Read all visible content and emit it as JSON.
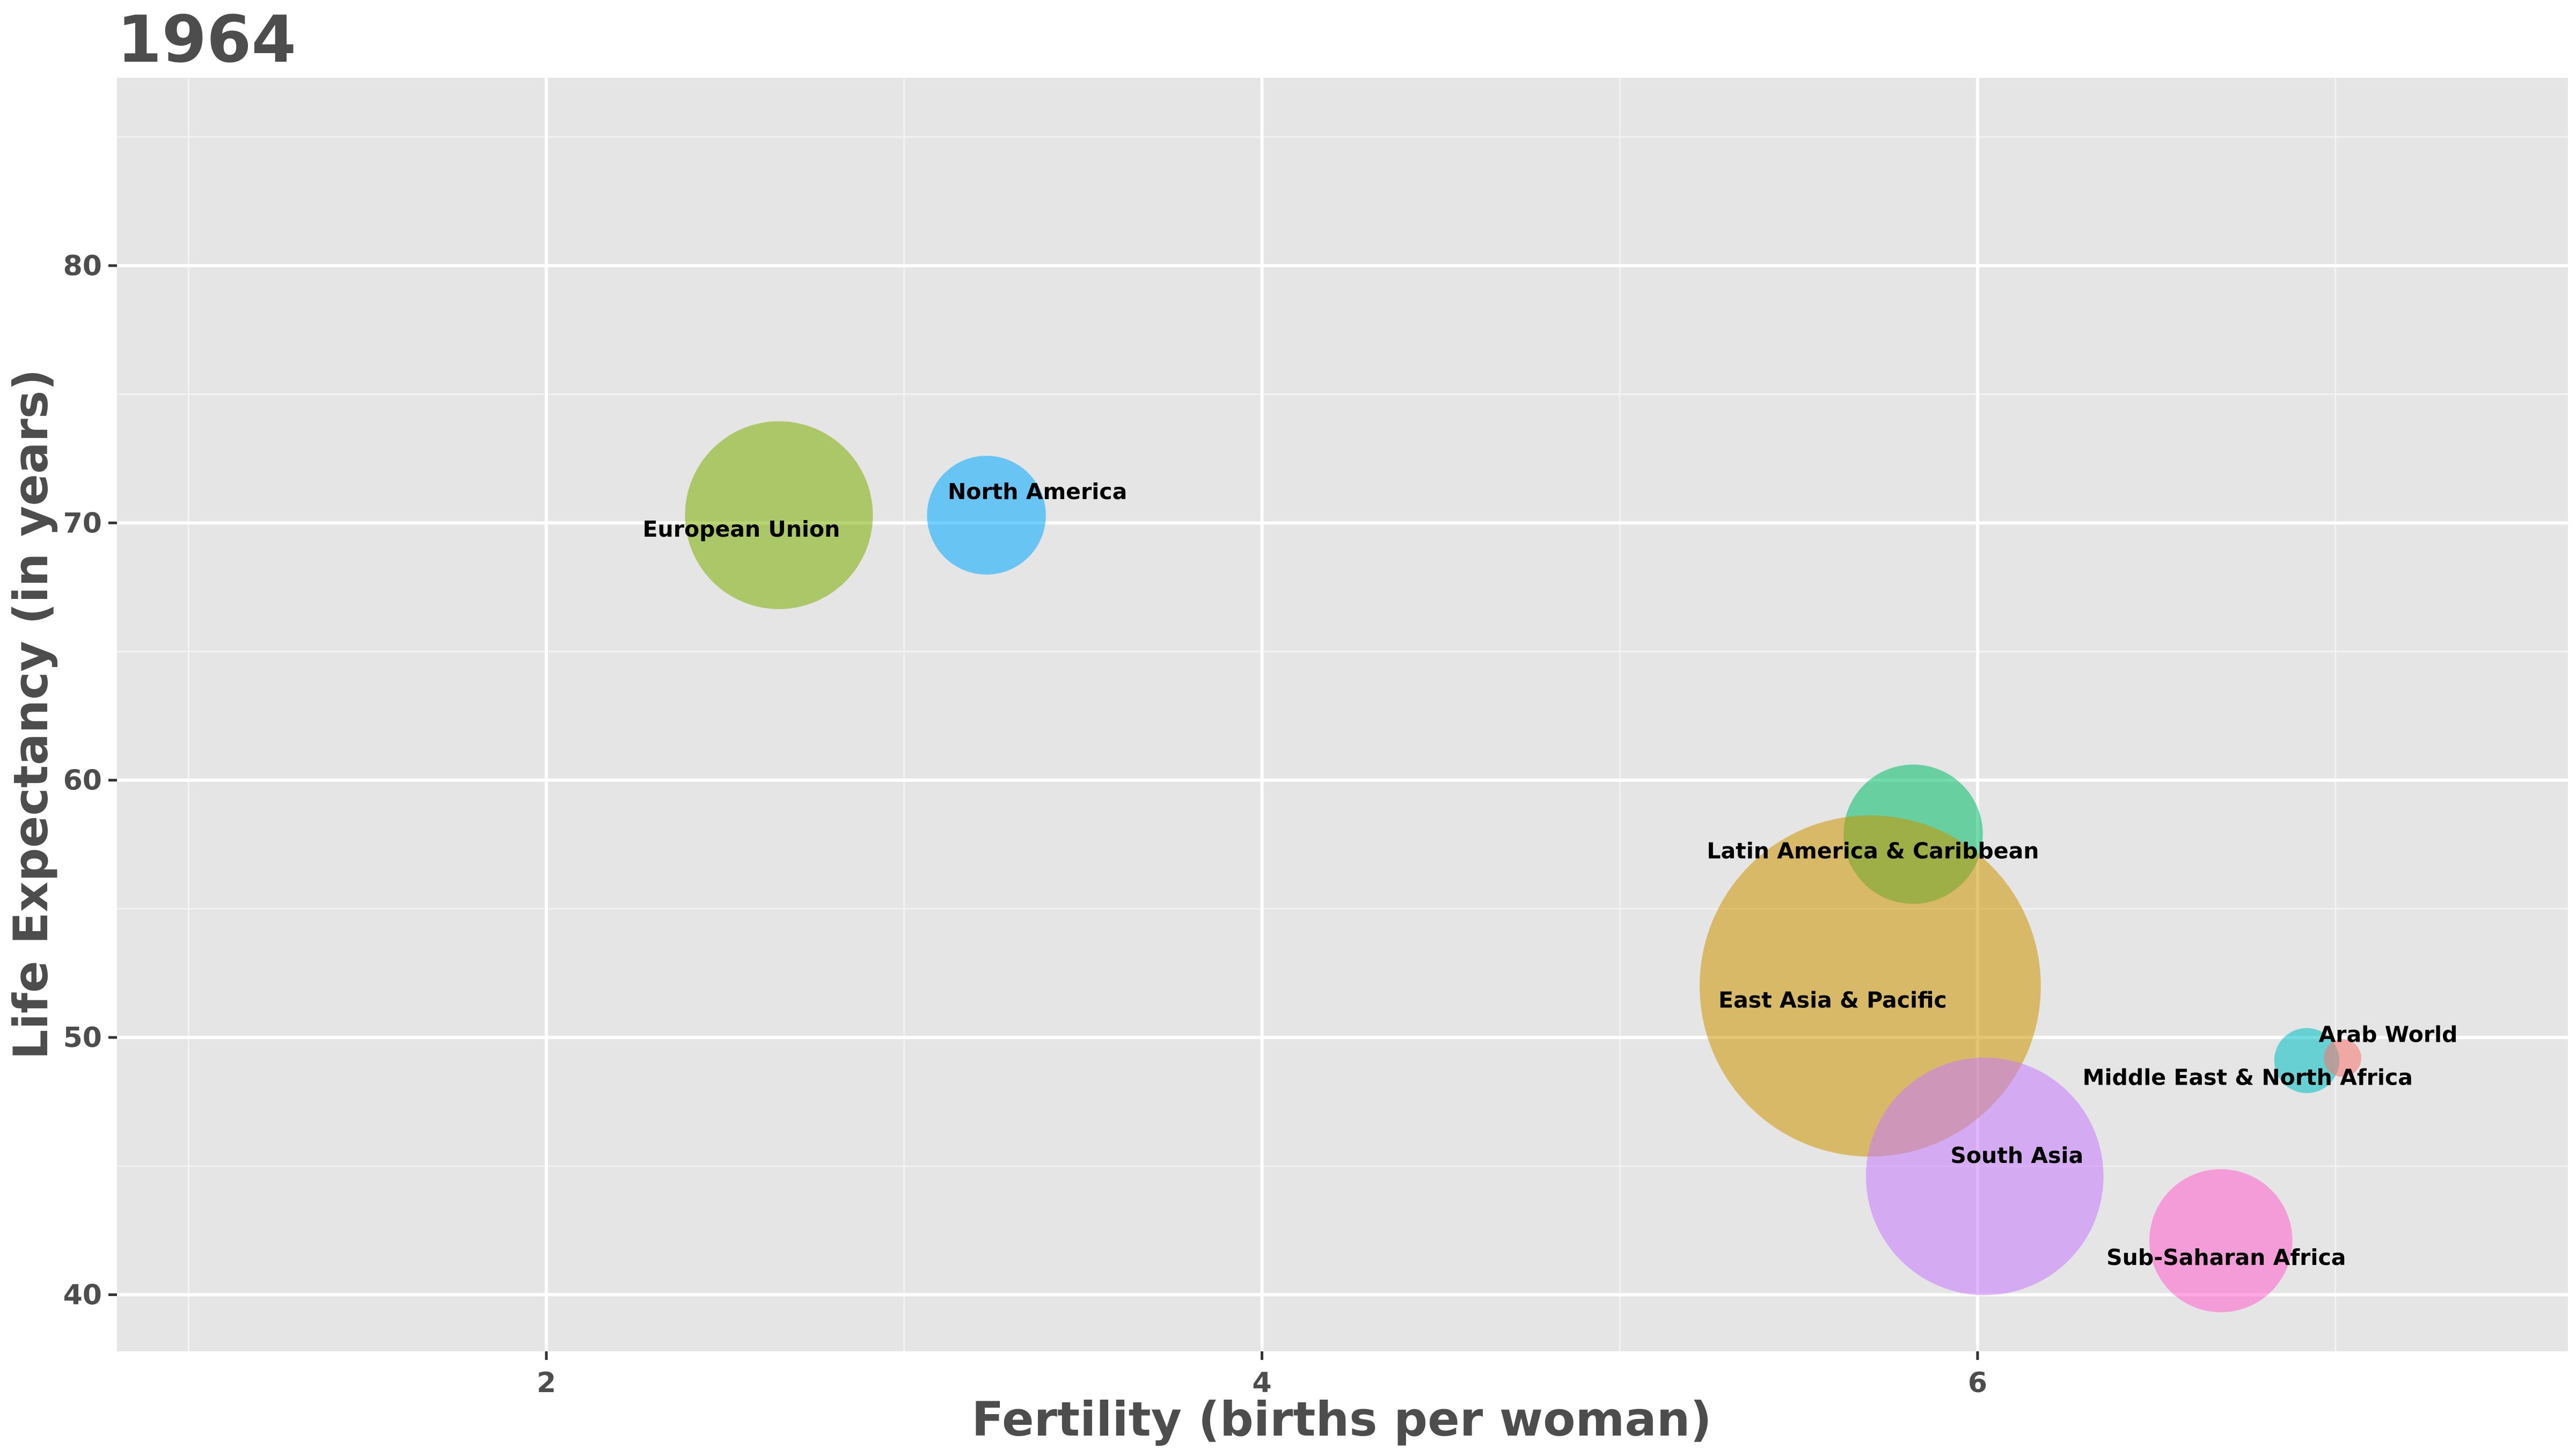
{
  "chart_data": {
    "type": "scatter",
    "title": "1964",
    "xlabel": "Fertility (births per woman)",
    "ylabel": "Life Expectancy (in years)",
    "xlim": [
      0.8,
      7.65
    ],
    "ylim": [
      37.8,
      87.3
    ],
    "x_ticks": [
      2,
      4,
      6
    ],
    "y_ticks": [
      40,
      50,
      60,
      70,
      80
    ],
    "grid": true,
    "legend": "none",
    "points": [
      {
        "name": "European Union",
        "x": 2.65,
        "y": 70.3,
        "size": 100,
        "color": "#7cae00"
      },
      {
        "name": "North America",
        "x": 3.23,
        "y": 70.3,
        "size": 40,
        "color": "#00a9ff"
      },
      {
        "name": "Latin America & Caribbean",
        "x": 5.82,
        "y": 57.9,
        "size": 55,
        "color": "#00be67"
      },
      {
        "name": "East Asia & Pacific",
        "x": 5.7,
        "y": 52.0,
        "size": 330,
        "color": "#cd9600"
      },
      {
        "name": "Middle East & North Africa",
        "x": 6.92,
        "y": 49.1,
        "size": 12,
        "color": "#00bfc4"
      },
      {
        "name": "Arab World",
        "x": 7.02,
        "y": 49.2,
        "size": 4,
        "color": "#f8766d"
      },
      {
        "name": "South Asia",
        "x": 6.02,
        "y": 44.6,
        "size": 160,
        "color": "#c77cff"
      },
      {
        "name": "Sub-Saharan Africa",
        "x": 6.68,
        "y": 42.1,
        "size": 58,
        "color": "#ff61cc"
      }
    ]
  }
}
